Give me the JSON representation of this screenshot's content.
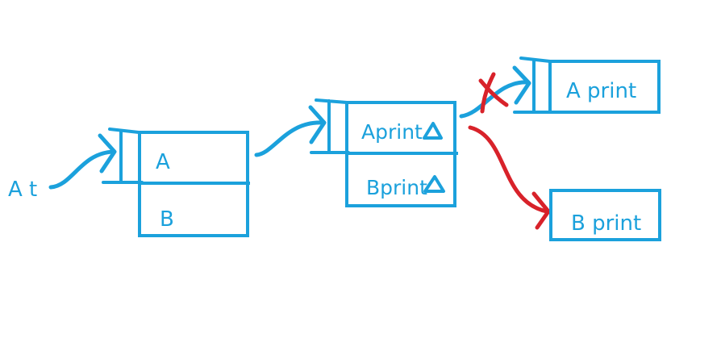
{
  "colors": {
    "ink": "#1ba1dc",
    "red": "#d8222a",
    "background": "#ffffff"
  },
  "pointer": {
    "label": "A t"
  },
  "object_A": {
    "field_a": "A",
    "field_b": "B"
  },
  "object_B": {
    "field_a": "Aprint",
    "field_b": "Bprint",
    "field_a_marker": "triangle-icon",
    "field_b_marker": "triangle-icon"
  },
  "object_C": {
    "label": "A print",
    "status": "cancelled"
  },
  "object_D": {
    "label": "B print"
  }
}
